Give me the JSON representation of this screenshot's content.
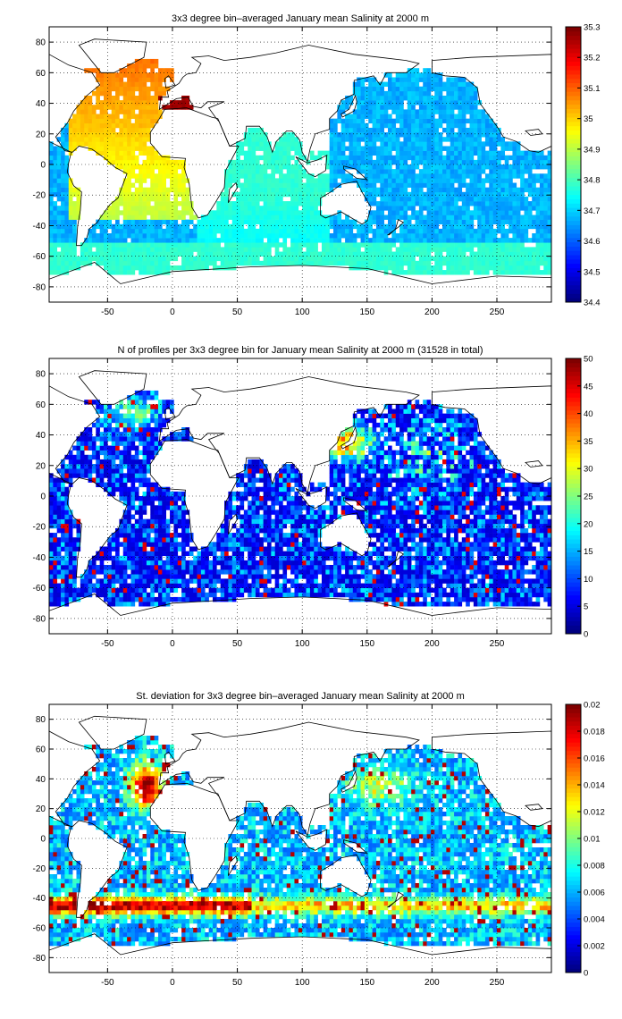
{
  "colormap": "jet",
  "land_color": "#ffffff",
  "grid_style": "dotted",
  "chart_data": [
    {
      "type": "heatmap",
      "title": "3x3 degree bin–averaged January mean Salinity at 2000 m",
      "xlim": [
        -95,
        292
      ],
      "ylim": [
        -90,
        90
      ],
      "xticks": [
        -50,
        0,
        50,
        100,
        150,
        200,
        250
      ],
      "yticks": [
        80,
        60,
        40,
        20,
        0,
        -20,
        -40,
        -60,
        -80
      ],
      "grid": true,
      "colorbar": {
        "min": 34.4,
        "max": 35.3,
        "ticks": [
          35.3,
          35.2,
          35.1,
          35,
          34.9,
          34.8,
          34.7,
          34.6,
          34.5,
          34.4
        ]
      },
      "bin_size_deg": 3,
      "field": "mean_salinity"
    },
    {
      "type": "heatmap",
      "title": "N of profiles per 3x3 degree bin for January mean Salinity at 2000 m (31528 in total)",
      "xlim": [
        -95,
        292
      ],
      "ylim": [
        -90,
        90
      ],
      "xticks": [
        -50,
        0,
        50,
        100,
        150,
        200,
        250
      ],
      "yticks": [
        80,
        60,
        40,
        20,
        0,
        -20,
        -40,
        -60,
        -80
      ],
      "grid": true,
      "colorbar": {
        "min": 0,
        "max": 50,
        "ticks": [
          50,
          45,
          40,
          35,
          30,
          25,
          20,
          15,
          10,
          5,
          0
        ]
      },
      "bin_size_deg": 3,
      "total_profiles": 31528,
      "field": "profile_count"
    },
    {
      "type": "heatmap",
      "title": "St. deviation for 3x3 degree bin–averaged January mean Salinity at 2000 m",
      "xlim": [
        -95,
        292
      ],
      "ylim": [
        -90,
        90
      ],
      "xticks": [
        -50,
        0,
        50,
        100,
        150,
        200,
        250
      ],
      "yticks": [
        80,
        60,
        40,
        20,
        0,
        -20,
        -40,
        -60,
        -80
      ],
      "grid": true,
      "colorbar": {
        "min": 0,
        "max": 0.02,
        "ticks": [
          0.02,
          0.018,
          0.016,
          0.014,
          0.012,
          0.01,
          0.008,
          0.006,
          0.004,
          0.002,
          0
        ]
      },
      "bin_size_deg": 3,
      "field": "std_salinity"
    }
  ]
}
